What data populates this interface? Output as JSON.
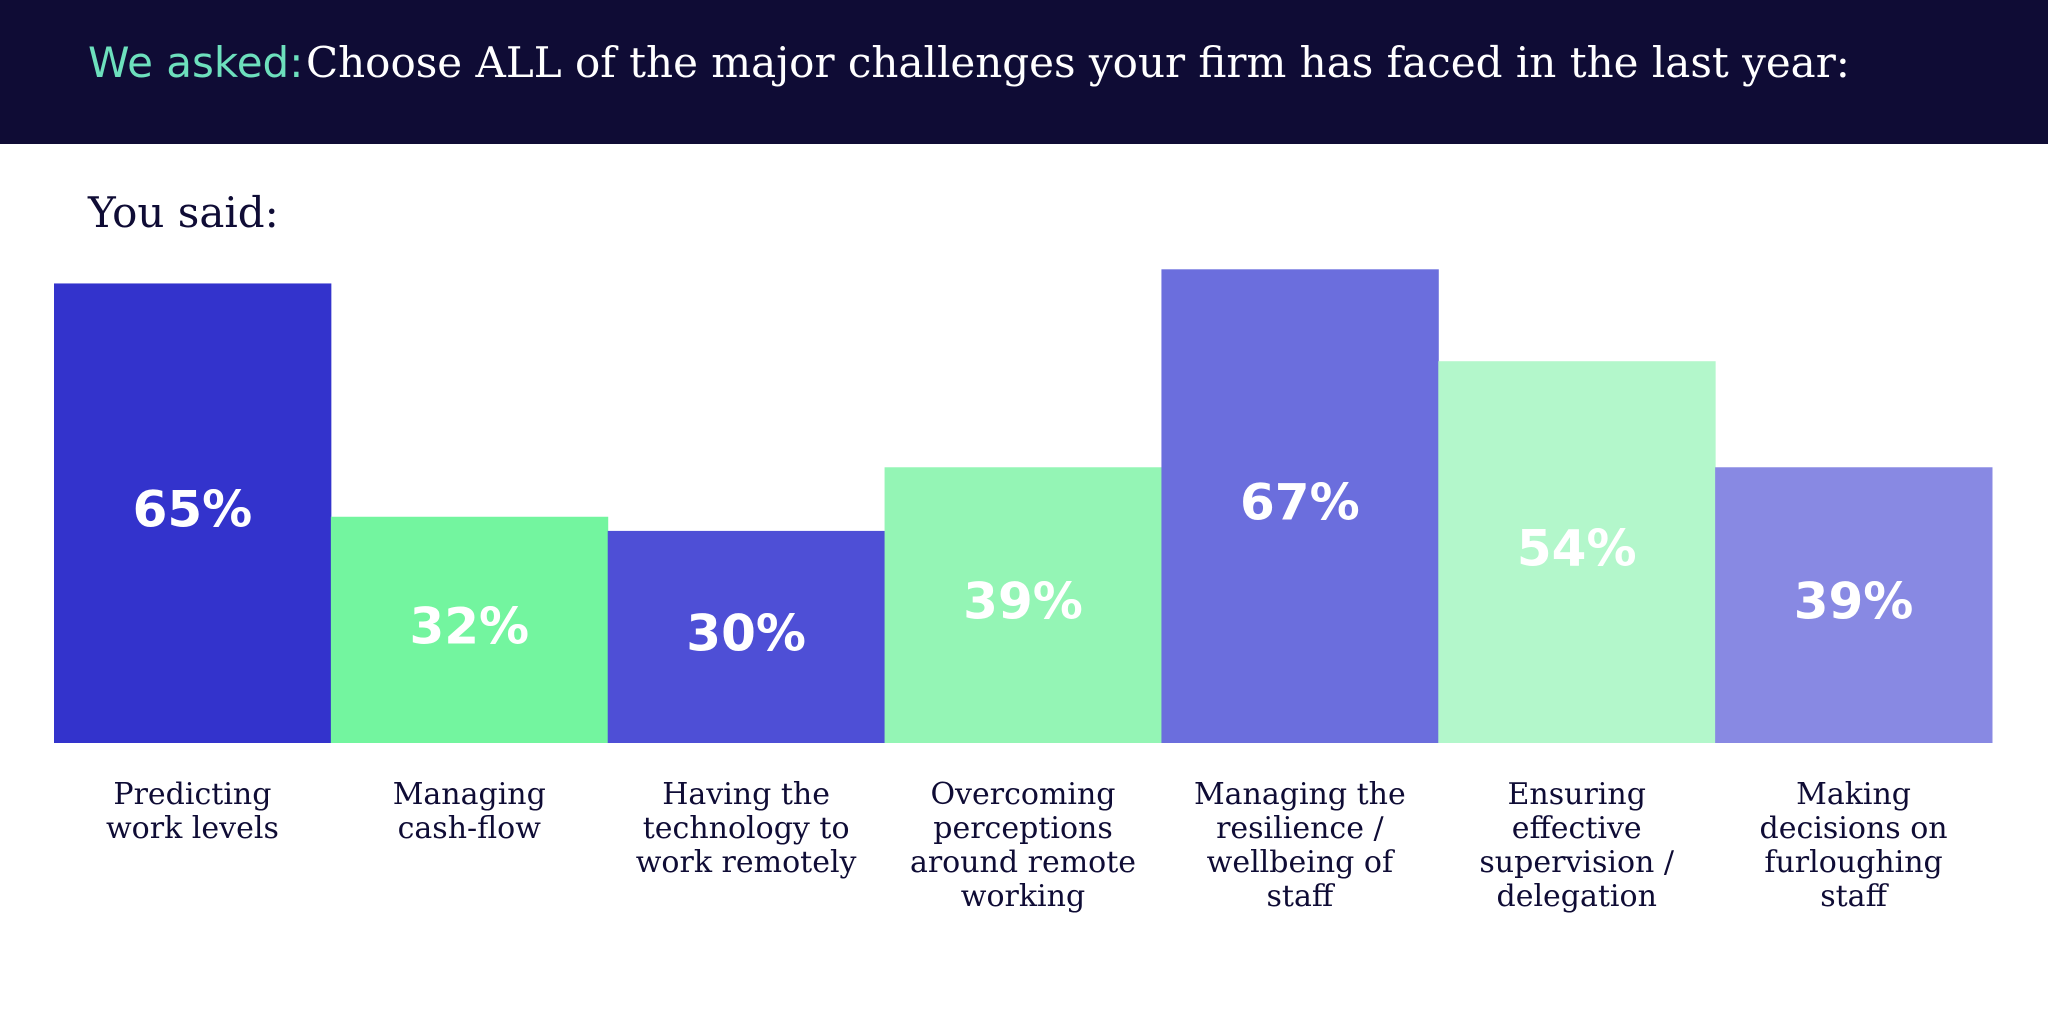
{
  "chart_data": {
    "type": "bar",
    "title_lead": "We asked:",
    "title": "Choose ALL of the major challenges your firm has faced in the last year:",
    "subtitle": "You said:",
    "categories": [
      "Predicting work levels",
      "Managing cash-flow",
      "Having the technology to work remotely",
      "Overcoming perceptions around remote working",
      "Managing the resilience / wellbeing of staff",
      "Ensuring effective supervision / delegation",
      "Making decisions on furloughing staff"
    ],
    "values": [
      65,
      32,
      30,
      39,
      67,
      54,
      39
    ],
    "value_labels": [
      "65%",
      "32%",
      "30%",
      "39%",
      "67%",
      "54%",
      "39%"
    ],
    "colors": [
      "#3333cc",
      "#73f59f",
      "#4e4fd6",
      "#94f5b5",
      "#6b6edd",
      "#b3f7cb",
      "#8889e3"
    ]
  }
}
